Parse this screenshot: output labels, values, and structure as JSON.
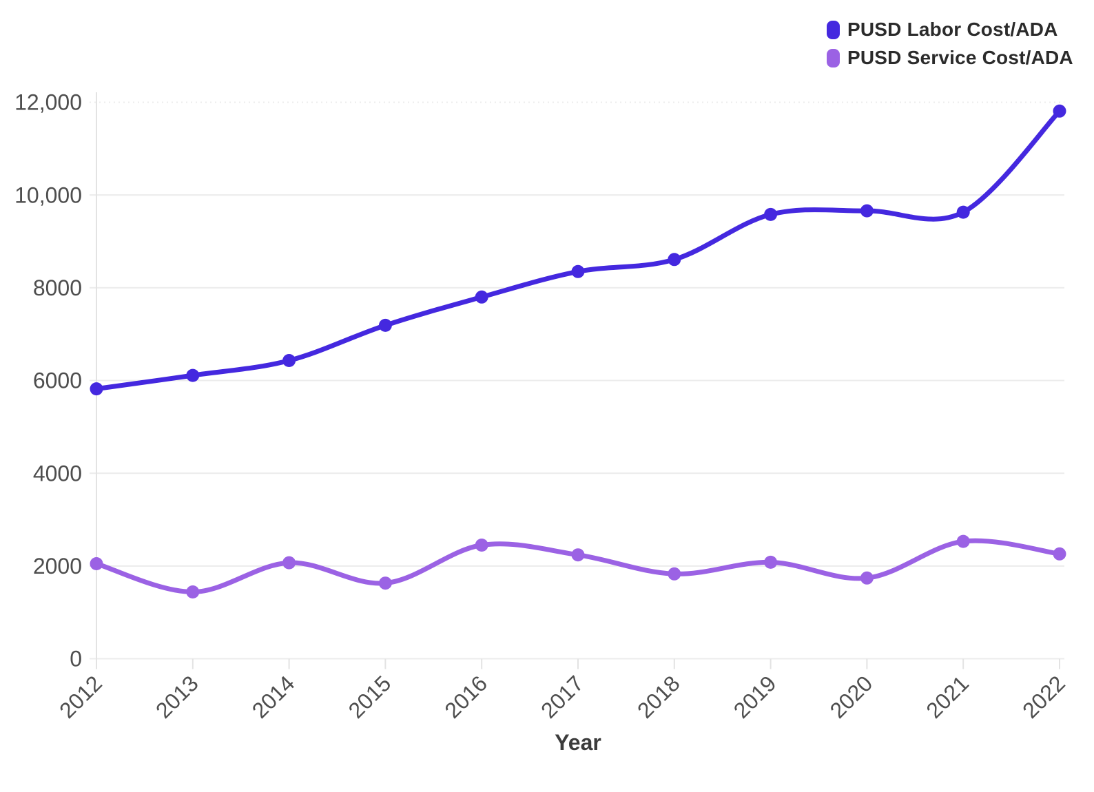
{
  "chart_data": {
    "type": "line",
    "title": "",
    "xlabel": "Year",
    "ylabel": "",
    "x": [
      2012,
      2013,
      2014,
      2015,
      2016,
      2017,
      2018,
      2019,
      2020,
      2021,
      2022
    ],
    "series": [
      {
        "name": "PUSD Labor Cost/ADA",
        "color": "#4428df",
        "values": [
          5820,
          6110,
          6430,
          7190,
          7800,
          8350,
          8610,
          9580,
          9660,
          9630,
          11810
        ]
      },
      {
        "name": "PUSD Service Cost/ADA",
        "color": "#9b62e4",
        "values": [
          2050,
          1440,
          2070,
          1630,
          2450,
          2240,
          1830,
          2080,
          1740,
          2530,
          2260
        ]
      }
    ],
    "ylim": [
      0,
      12000
    ],
    "yticks": [
      0,
      2000,
      4000,
      6000,
      8000,
      10000,
      12000
    ],
    "ytick_labels": [
      "0",
      "2000",
      "4000",
      "6000",
      "8000",
      "10,000",
      "12,000"
    ],
    "grid": "horizontal",
    "top_gridline_style": "dotted",
    "legend_position": "top-right",
    "line_style": "smooth-with-points"
  },
  "styles": {
    "background": "#ffffff",
    "grid_color": "#ececec",
    "axis_color": "#e3e3e3",
    "tick_label_color": "#4e4e4e",
    "axis_title_color": "#3c3c3c",
    "legend_text_color": "#2b2b2b"
  }
}
